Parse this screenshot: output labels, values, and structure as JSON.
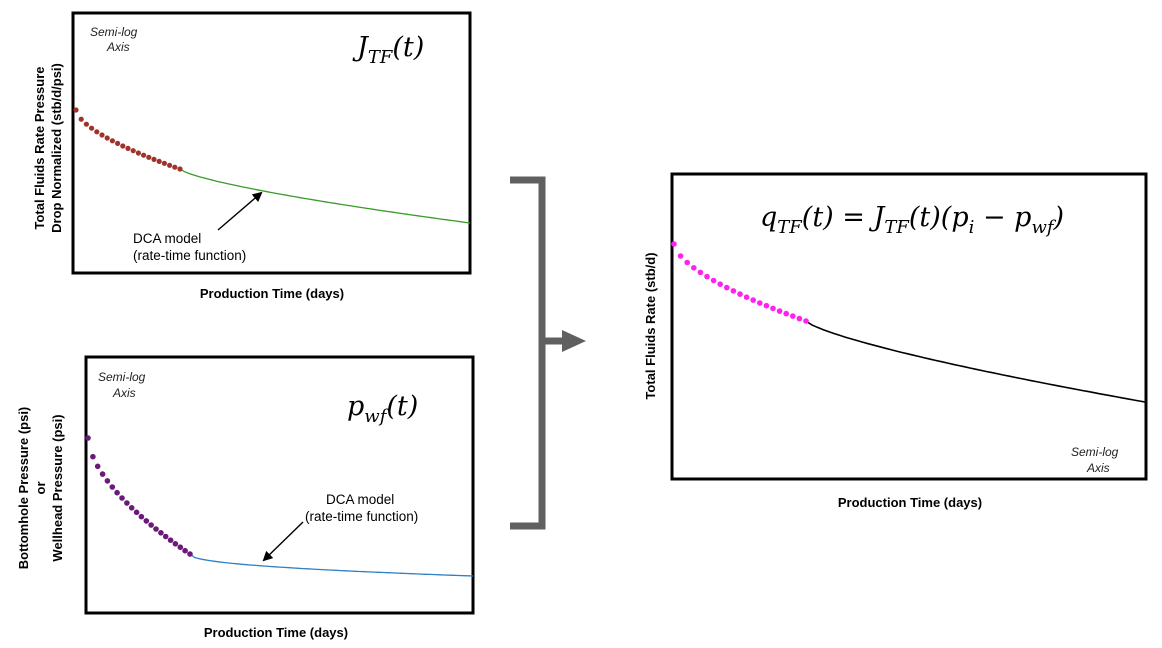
{
  "panels": {
    "top_left": {
      "semilog_line1": "Semi-log",
      "semilog_line2": "Axis",
      "formula_main": "J",
      "formula_sub": "TF",
      "formula_arg": "(t)",
      "ylabel_line1": "Total Fluids Rate Pressure",
      "ylabel_line2": "Drop Normalized (stb/d/psi)",
      "xlabel": "Production Time (days)",
      "annotation_line1": "DCA model",
      "annotation_line2": "(rate-time function)",
      "data_color": "#a0322a",
      "curve_color": "#3a9a2a"
    },
    "bottom_left": {
      "semilog_line1": "Semi-log",
      "semilog_line2": "Axis",
      "formula_main": "p",
      "formula_sub": "wf",
      "formula_arg": "(t)",
      "ylabel_line1": "Bottomhole Pressure (psi)",
      "ylabel_line2": "or",
      "ylabel_line3": "Wellhead Pressure (psi)",
      "xlabel": "Production Time (days)",
      "annotation_line1": "DCA model",
      "annotation_line2": "(rate-time function)",
      "data_color": "#6a1a78",
      "curve_color": "#2f7fc4"
    },
    "right": {
      "semilog_line1": "Semi-log",
      "semilog_line2": "Axis",
      "formula_q": "q",
      "formula_q_sub": "TF",
      "formula_eq": "(t) = ",
      "formula_J": "J",
      "formula_J_sub": "TF",
      "formula_J_arg": "(t)",
      "formula_open": "(",
      "formula_p": "p",
      "formula_p_sub": "i",
      "formula_minus": " − ",
      "formula_pwf": "p",
      "formula_pwf_sub": "wf",
      "formula_close": ")",
      "ylabel": "Total Fluids Rate (stb/d)",
      "xlabel": "Production Time (days)",
      "data_color": "#ff22ee",
      "curve_color": "#000000"
    }
  },
  "connector": {
    "color": "#606060"
  }
}
